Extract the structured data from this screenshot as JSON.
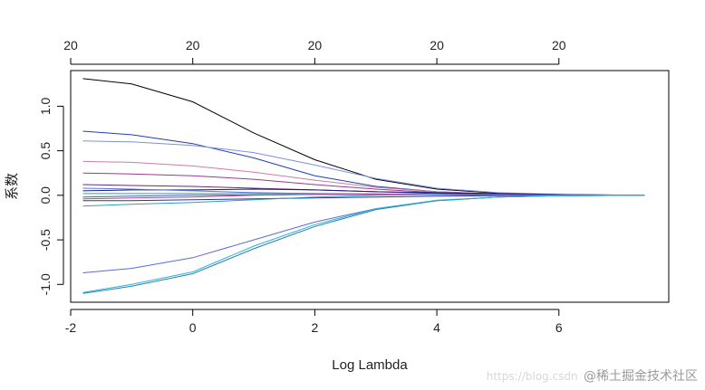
{
  "chart_data": {
    "type": "line",
    "title": "",
    "xlabel": "Log Lambda",
    "ylabel": "系数",
    "xlim": [
      -2,
      7.8
    ],
    "ylim": [
      -1.2,
      1.4
    ],
    "x_ticks": [
      -2,
      0,
      2,
      4,
      6
    ],
    "x_tick_labels": [
      "-2",
      "0",
      "2",
      "4",
      "6"
    ],
    "y_ticks": [
      -1.0,
      -0.5,
      0.0,
      0.5,
      1.0
    ],
    "y_tick_labels": [
      "-1.0",
      "-0.5",
      "0.0",
      "0.5",
      "1.0"
    ],
    "top_axis_ticks": [
      -2,
      0,
      2,
      4,
      6
    ],
    "top_axis_labels": [
      "20",
      "20",
      "20",
      "20",
      "20"
    ],
    "grid": false,
    "legend": "none",
    "colors": {
      "axis": "#000000",
      "label": "#222222"
    },
    "series": [
      {
        "color": "#000000",
        "values": [
          [
            -1.8,
            1.31
          ],
          [
            -1,
            1.25
          ],
          [
            0,
            1.05
          ],
          [
            1,
            0.7
          ],
          [
            2,
            0.4
          ],
          [
            3,
            0.18
          ],
          [
            4,
            0.07
          ],
          [
            5,
            0.025
          ],
          [
            6,
            0.008
          ],
          [
            7.4,
            0.0
          ]
        ]
      },
      {
        "color": "#1f3fb0",
        "values": [
          [
            -1.8,
            0.72
          ],
          [
            -1,
            0.68
          ],
          [
            0,
            0.58
          ],
          [
            1,
            0.42
          ],
          [
            2,
            0.22
          ],
          [
            3,
            0.1
          ],
          [
            4,
            0.04
          ],
          [
            5,
            0.015
          ],
          [
            6,
            0.005
          ],
          [
            7.4,
            0.0
          ]
        ]
      },
      {
        "color": "#7f8fe0",
        "values": [
          [
            -1.8,
            0.61
          ],
          [
            -1,
            0.6
          ],
          [
            0,
            0.56
          ],
          [
            1,
            0.48
          ],
          [
            2,
            0.34
          ],
          [
            3,
            0.19
          ],
          [
            4,
            0.08
          ],
          [
            5,
            0.03
          ],
          [
            6,
            0.01
          ],
          [
            7.4,
            0.0
          ]
        ]
      },
      {
        "color": "#d07aa8",
        "values": [
          [
            -1.8,
            0.38
          ],
          [
            -1,
            0.37
          ],
          [
            0,
            0.33
          ],
          [
            1,
            0.26
          ],
          [
            2,
            0.17
          ],
          [
            3,
            0.09
          ],
          [
            4,
            0.04
          ],
          [
            5,
            0.015
          ],
          [
            6,
            0.005
          ],
          [
            7.4,
            0.0
          ]
        ]
      },
      {
        "color": "#9a3a8a",
        "values": [
          [
            -1.8,
            0.25
          ],
          [
            -1,
            0.24
          ],
          [
            0,
            0.22
          ],
          [
            1,
            0.18
          ],
          [
            2,
            0.12
          ],
          [
            3,
            0.07
          ],
          [
            4,
            0.03
          ],
          [
            5,
            0.012
          ],
          [
            6,
            0.004
          ],
          [
            7.4,
            0.0
          ]
        ]
      },
      {
        "color": "#6a2a7a",
        "values": [
          [
            -1.8,
            0.12
          ],
          [
            -1,
            0.11
          ],
          [
            0,
            0.1
          ],
          [
            1,
            0.08
          ],
          [
            2,
            0.06
          ],
          [
            3,
            0.04
          ],
          [
            4,
            0.02
          ],
          [
            5,
            0.01
          ],
          [
            6,
            0.003
          ],
          [
            7.4,
            0.0
          ]
        ]
      },
      {
        "color": "#1a1a80",
        "values": [
          [
            -1.8,
            0.05
          ],
          [
            -1,
            0.06
          ],
          [
            0,
            0.06
          ],
          [
            1,
            0.07
          ],
          [
            2,
            0.06
          ],
          [
            3,
            0.04
          ],
          [
            4,
            0.03
          ],
          [
            5,
            0.02
          ],
          [
            6,
            0.01
          ],
          [
            7.4,
            0.0
          ]
        ]
      },
      {
        "color": "#5a78d0",
        "values": [
          [
            -1.8,
            0.08
          ],
          [
            -1,
            0.07
          ],
          [
            0,
            0.05
          ],
          [
            1,
            0.03
          ],
          [
            2,
            0.02
          ],
          [
            3,
            0.015
          ],
          [
            4,
            0.01
          ],
          [
            5,
            0.005
          ],
          [
            6,
            0.002
          ],
          [
            7.4,
            0.0
          ]
        ]
      },
      {
        "color": "#2a9ad0",
        "values": [
          [
            -1.8,
            0.02
          ],
          [
            -1,
            0.02
          ],
          [
            0,
            0.02
          ],
          [
            1,
            0.02
          ],
          [
            2,
            0.02
          ],
          [
            3,
            0.015
          ],
          [
            4,
            0.01
          ],
          [
            5,
            0.005
          ],
          [
            6,
            0.002
          ],
          [
            7.4,
            0.0
          ]
        ]
      },
      {
        "color": "#3a6a9a",
        "values": [
          [
            -1.8,
            -0.02
          ],
          [
            -1,
            -0.01
          ],
          [
            0,
            0.0
          ],
          [
            1,
            0.005
          ],
          [
            2,
            0.01
          ],
          [
            3,
            0.01
          ],
          [
            4,
            0.008
          ],
          [
            5,
            0.004
          ],
          [
            6,
            0.002
          ],
          [
            7.4,
            0.0
          ]
        ]
      },
      {
        "color": "#b04a9a",
        "values": [
          [
            -1.8,
            -0.04
          ],
          [
            -1,
            -0.03
          ],
          [
            0,
            -0.02
          ],
          [
            1,
            0.0
          ],
          [
            2,
            0.01
          ],
          [
            3,
            0.015
          ],
          [
            4,
            0.01
          ],
          [
            5,
            0.005
          ],
          [
            6,
            0.002
          ],
          [
            7.4,
            0.0
          ]
        ]
      },
      {
        "color": "#3030a0",
        "values": [
          [
            -1.8,
            -0.06
          ],
          [
            -1,
            -0.06
          ],
          [
            0,
            -0.05
          ],
          [
            1,
            -0.04
          ],
          [
            2,
            -0.03
          ],
          [
            3,
            -0.02
          ],
          [
            4,
            -0.01
          ],
          [
            5,
            -0.005
          ],
          [
            6,
            -0.002
          ],
          [
            7.4,
            0.0
          ]
        ]
      },
      {
        "color": "#2aa0c8",
        "values": [
          [
            -1.8,
            -0.12
          ],
          [
            -1,
            -0.1
          ],
          [
            0,
            -0.08
          ],
          [
            1,
            -0.05
          ],
          [
            2,
            -0.02
          ],
          [
            3,
            0.0
          ],
          [
            4,
            0.01
          ],
          [
            5,
            0.005
          ],
          [
            6,
            0.002
          ],
          [
            7.4,
            0.0
          ]
        ]
      },
      {
        "color": "#5a6ad8",
        "values": [
          [
            -1.8,
            -0.87
          ],
          [
            -1,
            -0.82
          ],
          [
            0,
            -0.7
          ],
          [
            1,
            -0.5
          ],
          [
            2,
            -0.3
          ],
          [
            3,
            -0.15
          ],
          [
            4,
            -0.06
          ],
          [
            5,
            -0.02
          ],
          [
            6,
            -0.005
          ],
          [
            7.4,
            0.0
          ]
        ]
      },
      {
        "color": "#1f7fb8",
        "values": [
          [
            -1.8,
            -1.1
          ],
          [
            -1,
            -1.02
          ],
          [
            0,
            -0.88
          ],
          [
            1,
            -0.6
          ],
          [
            2,
            -0.35
          ],
          [
            3,
            -0.16
          ],
          [
            4,
            -0.06
          ],
          [
            5,
            -0.02
          ],
          [
            6,
            -0.005
          ],
          [
            7.4,
            0.0
          ]
        ]
      },
      {
        "color": "#30b0d8",
        "values": [
          [
            -1.8,
            -1.09
          ],
          [
            -1,
            -1.0
          ],
          [
            0,
            -0.86
          ],
          [
            1,
            -0.57
          ],
          [
            2,
            -0.33
          ],
          [
            3,
            -0.15
          ],
          [
            4,
            -0.055
          ],
          [
            5,
            -0.02
          ],
          [
            6,
            -0.005
          ],
          [
            7.4,
            0.0
          ]
        ]
      }
    ]
  },
  "watermark": {
    "url": "https://blog.csdn",
    "text": "@稀土掘金技术社区"
  }
}
